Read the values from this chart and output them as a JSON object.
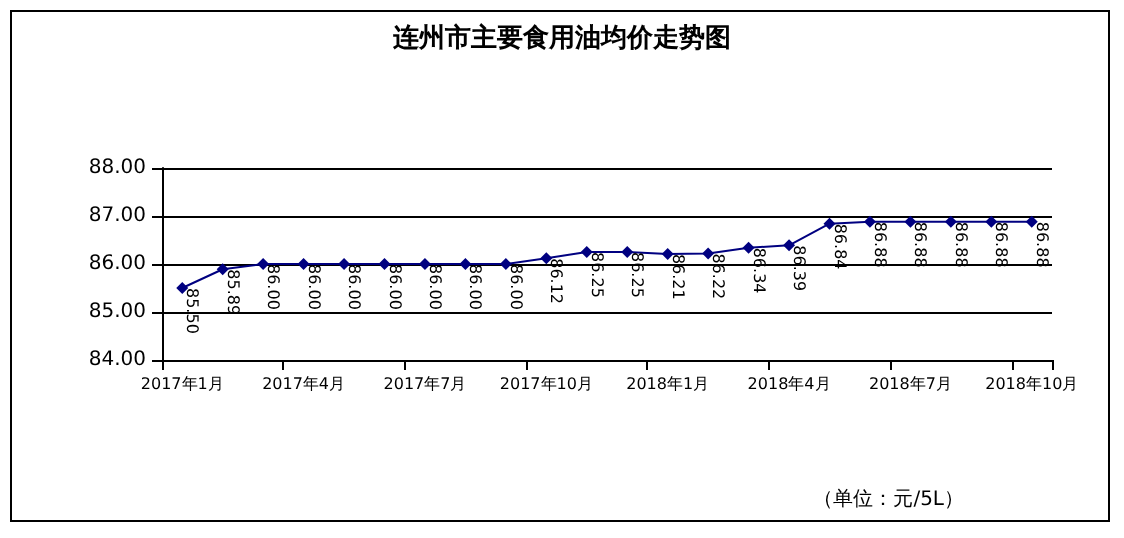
{
  "chart_data": {
    "type": "line",
    "title": "连州市主要食用油均价走势图",
    "categories": [
      "2017年1月",
      null,
      null,
      "2017年4月",
      null,
      null,
      "2017年7月",
      null,
      null,
      "2017年10月",
      null,
      null,
      "2018年1月",
      null,
      null,
      "2018年4月",
      null,
      null,
      "2018年7月",
      null,
      null,
      "2018年10月"
    ],
    "series": [
      {
        "color": "#000080",
        "values": [
          85.5,
          85.89,
          86.0,
          86.0,
          86.0,
          86.0,
          86.0,
          86.0,
          86.0,
          86.12,
          86.25,
          86.25,
          86.21,
          86.22,
          86.34,
          86.39,
          86.84,
          86.88,
          86.88,
          86.88,
          86.88,
          86.88
        ],
        "value_labels": [
          "85.50",
          "85.89",
          "86.00",
          "86.00",
          "86.00",
          "86.00",
          "86.00",
          "86.00",
          "86.00",
          "86.12",
          "86.25",
          "86.25",
          "86.21",
          "86.22",
          "86.34",
          "86.39",
          "86.84",
          "86.88",
          "86.88",
          "86.88",
          "86.88",
          "86.88"
        ]
      }
    ],
    "ylim": [
      84,
      88
    ],
    "yticks": [
      {
        "value": 84,
        "label": "84.00"
      },
      {
        "value": 85,
        "label": "85.00"
      },
      {
        "value": 86,
        "label": "86.00"
      },
      {
        "value": 87,
        "label": "87.00"
      },
      {
        "value": 88,
        "label": "88.00"
      }
    ],
    "grid": "y",
    "marker": "diamond",
    "line_style": "solid",
    "annotations": [
      "（单位：元/5L）"
    ]
  }
}
